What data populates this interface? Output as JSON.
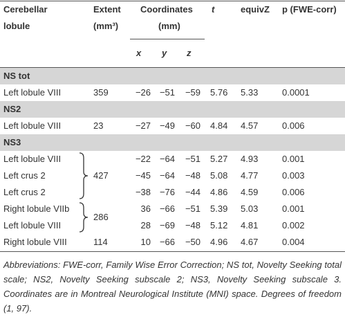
{
  "table": {
    "header": {
      "lobule": [
        "Cerebellar",
        "lobule"
      ],
      "extent": [
        "Extent",
        "(mm³)"
      ],
      "coordinates": [
        "Coordinates",
        "(mm)"
      ],
      "t": "t",
      "equivZ": "equivZ",
      "p": "p (FWE-corr)",
      "x": "x",
      "y": "y",
      "z": "z"
    },
    "groups": [
      {
        "name": "NS tot",
        "clusters": [
          {
            "extent": "359",
            "rows": [
              {
                "lobule": "Left lobule VIII",
                "x": "−26",
                "y": "−51",
                "z": "−59",
                "t": "5.76",
                "equivZ": "5.33",
                "p": "0.0001"
              }
            ]
          }
        ]
      },
      {
        "name": "NS2",
        "clusters": [
          {
            "extent": "23",
            "rows": [
              {
                "lobule": "Left lobule VIII",
                "x": "−27",
                "y": "−49",
                "z": "−60",
                "t": "4.84",
                "equivZ": "4.57",
                "p": "0.006"
              }
            ]
          }
        ]
      },
      {
        "name": "NS3",
        "clusters": [
          {
            "extent": "427",
            "rows": [
              {
                "lobule": "Left lobule VIII",
                "x": "−22",
                "y": "−64",
                "z": "−51",
                "t": "5.27",
                "equivZ": "4.93",
                "p": "0.001"
              },
              {
                "lobule": "Left crus 2",
                "x": "−45",
                "y": "−64",
                "z": "−48",
                "t": "5.08",
                "equivZ": "4.77",
                "p": "0.003"
              },
              {
                "lobule": "Left crus 2",
                "x": "−38",
                "y": "−76",
                "z": "−44",
                "t": "4.86",
                "equivZ": "4.59",
                "p": "0.006"
              }
            ]
          },
          {
            "extent": "286",
            "rows": [
              {
                "lobule": "Right lobule VIIb",
                "x": "36",
                "y": "−66",
                "z": "−51",
                "t": "5.39",
                "equivZ": "5.03",
                "p": "0.001"
              },
              {
                "lobule": "Left lobule VIII",
                "x": "28",
                "y": "−69",
                "z": "−48",
                "t": "5.12",
                "equivZ": "4.81",
                "p": "0.002"
              }
            ]
          },
          {
            "extent": "114",
            "rows": [
              {
                "lobule": "Right lobule VIII",
                "x": "10",
                "y": "−66",
                "z": "−50",
                "t": "4.96",
                "equivZ": "4.67",
                "p": "0.004"
              }
            ]
          }
        ]
      }
    ]
  },
  "footnote": "Abbreviations: FWE-corr, Family Wise Error Correction; NS tot, Novelty Seeking total scale; NS2, Novelty Seeking subscale 2; NS3, Novelty Seeking subscale 3. Coordinates are in Montreal Neurological Institute (MNI) space. Degrees of freedom (1, 97)."
}
